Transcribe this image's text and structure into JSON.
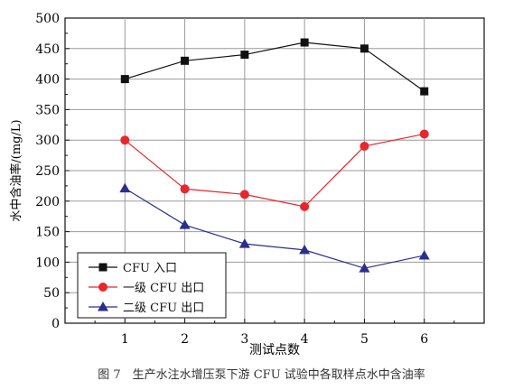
{
  "chart_data": {
    "type": "line",
    "title": "",
    "xlabel": "测试点数",
    "ylabel": "水中含油率/(mg/L)",
    "x": [
      1,
      2,
      3,
      4,
      5,
      6
    ],
    "xlim": [
      0,
      7
    ],
    "ylim": [
      0,
      500
    ],
    "x_ticks": [
      1,
      2,
      3,
      4,
      5,
      6
    ],
    "y_ticks": [
      0,
      50,
      100,
      150,
      200,
      250,
      300,
      350,
      400,
      450,
      500
    ],
    "grid": true,
    "legend_position": "bottom-left",
    "series": [
      {
        "name": "CFU 入口",
        "values": [
          400,
          430,
          440,
          460,
          450,
          380
        ],
        "color": "#111111",
        "marker": "square"
      },
      {
        "name": "一级 CFU 出口",
        "values": [
          300,
          220,
          211,
          191,
          290,
          310
        ],
        "color": "#e8262b",
        "marker": "circle"
      },
      {
        "name": "二级 CFU 出口",
        "values": [
          221,
          161,
          130,
          120,
          90,
          111
        ],
        "color": "#2a2f8c",
        "marker": "triangle"
      }
    ]
  },
  "caption": "图 7　生产水注水增压泵下游 CFU 试验中各取样点水中含油率"
}
